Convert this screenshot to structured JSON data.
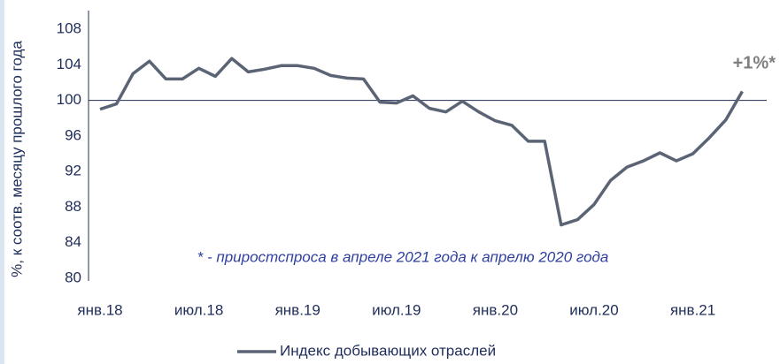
{
  "chart_data": {
    "type": "line",
    "y_axis_label": "%, к соотв. месяцу прошлого года",
    "annotation": "+1%*",
    "footnote": "* - приростспроса в апреле 2021 года к апрелю 2020 года",
    "categories": [
      "янв.18",
      null,
      null,
      null,
      null,
      null,
      "июл.18",
      null,
      null,
      null,
      null,
      null,
      "янв.19",
      null,
      null,
      null,
      null,
      null,
      "июл.19",
      null,
      null,
      null,
      null,
      null,
      "янв.20",
      null,
      null,
      null,
      null,
      null,
      "июл.20",
      null,
      null,
      null,
      null,
      null,
      "янв.21",
      null,
      null,
      null
    ],
    "series": [
      {
        "name": "Индекс добывающих отраслей",
        "color": "#5b6475",
        "values": [
          99.0,
          99.6,
          103.0,
          104.4,
          102.4,
          102.4,
          103.6,
          102.7,
          104.7,
          103.2,
          103.5,
          103.9,
          103.9,
          103.6,
          102.8,
          102.5,
          102.4,
          99.8,
          99.7,
          100.5,
          99.1,
          98.7,
          99.9,
          98.7,
          97.7,
          97.2,
          95.4,
          95.4,
          86.0,
          86.6,
          88.3,
          91.0,
          92.5,
          93.2,
          94.1,
          93.2,
          94.0,
          95.8,
          97.8,
          101.0
        ]
      }
    ],
    "reference_line": 100,
    "ylim": [
      80,
      108
    ],
    "yticks": [
      80,
      84,
      88,
      92,
      96,
      100,
      104,
      108
    ]
  }
}
